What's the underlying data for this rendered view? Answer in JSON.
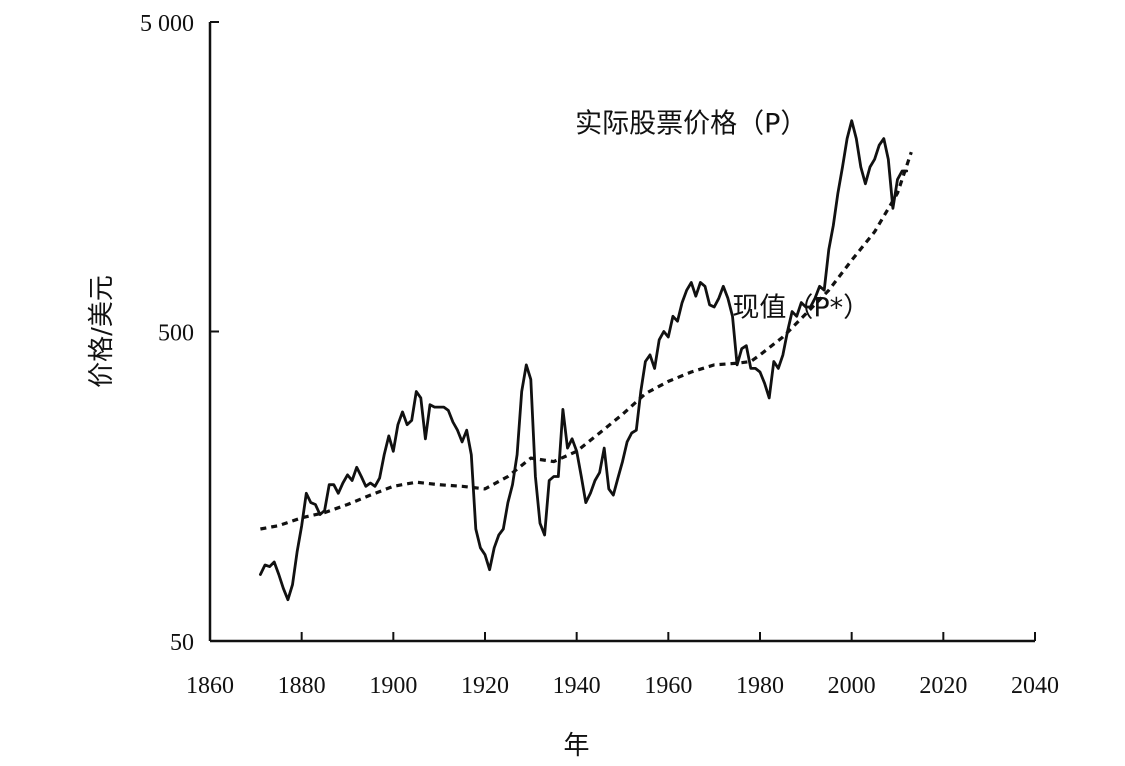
{
  "chart_data": {
    "type": "line",
    "title": "",
    "xlabel": "年",
    "ylabel": "价格/美元",
    "y_scale": "log",
    "xlim": [
      1860,
      2040
    ],
    "ylim": [
      50,
      5000
    ],
    "x_ticks": [
      1860,
      1880,
      1900,
      1920,
      1940,
      1960,
      1980,
      2000,
      2020,
      2040
    ],
    "x_tick_labels": [
      "1860",
      "1880",
      "1900",
      "1920",
      "1940",
      "1960",
      "1980",
      "2000",
      "2020",
      "2040"
    ],
    "y_ticks": [
      50,
      500,
      5000
    ],
    "y_tick_labels": [
      "50",
      "500",
      "5 000"
    ],
    "grid": false,
    "colors": {
      "line": "#111111",
      "axis": "#111111"
    },
    "series": [
      {
        "name": "实际股票价格（P）",
        "style": "solid",
        "x": [
          1871,
          1872,
          1873,
          1874,
          1875,
          1876,
          1877,
          1878,
          1879,
          1880,
          1881,
          1882,
          1883,
          1884,
          1885,
          1886,
          1887,
          1888,
          1889,
          1890,
          1891,
          1892,
          1893,
          1894,
          1895,
          1896,
          1897,
          1898,
          1899,
          1900,
          1901,
          1902,
          1903,
          1904,
          1905,
          1906,
          1907,
          1908,
          1909,
          1910,
          1911,
          1912,
          1913,
          1914,
          1915,
          1916,
          1917,
          1918,
          1919,
          1920,
          1921,
          1922,
          1923,
          1924,
          1925,
          1926,
          1927,
          1928,
          1929,
          1930,
          1931,
          1932,
          1933,
          1934,
          1935,
          1936,
          1937,
          1938,
          1939,
          1940,
          1941,
          1942,
          1943,
          1944,
          1945,
          1946,
          1947,
          1948,
          1949,
          1950,
          1951,
          1952,
          1953,
          1954,
          1955,
          1956,
          1957,
          1958,
          1959,
          1960,
          1961,
          1962,
          1963,
          1964,
          1965,
          1966,
          1967,
          1968,
          1969,
          1970,
          1971,
          1972,
          1973,
          1974,
          1975,
          1976,
          1977,
          1978,
          1979,
          1980,
          1981,
          1982,
          1983,
          1984,
          1985,
          1986,
          1987,
          1988,
          1989,
          1990,
          1991,
          1992,
          1993,
          1994,
          1995,
          1996,
          1997,
          1998,
          1999,
          2000,
          2001,
          2002,
          2003,
          2004,
          2005,
          2006,
          2007,
          2008,
          2009,
          2010,
          2011,
          2012
        ],
        "y": [
          82,
          88,
          87,
          90,
          82,
          74,
          68,
          76,
          97,
          118,
          150,
          140,
          138,
          128,
          132,
          160,
          160,
          150,
          162,
          172,
          165,
          182,
          170,
          158,
          162,
          158,
          168,
          200,
          230,
          205,
          250,
          275,
          250,
          258,
          320,
          305,
          225,
          290,
          285,
          285,
          285,
          278,
          255,
          240,
          220,
          240,
          200,
          115,
          100,
          95,
          85,
          100,
          110,
          115,
          140,
          160,
          200,
          320,
          390,
          350,
          170,
          120,
          110,
          165,
          170,
          170,
          280,
          210,
          225,
          205,
          170,
          140,
          150,
          165,
          175,
          210,
          155,
          148,
          168,
          190,
          220,
          235,
          240,
          320,
          400,
          420,
          380,
          470,
          500,
          480,
          560,
          540,
          620,
          680,
          720,
          650,
          720,
          700,
          610,
          600,
          640,
          700,
          640,
          560,
          390,
          440,
          450,
          380,
          380,
          370,
          340,
          305,
          400,
          380,
          420,
          500,
          580,
          560,
          620,
          600,
          600,
          640,
          700,
          680,
          920,
          1100,
          1400,
          1700,
          2100,
          2400,
          2100,
          1700,
          1500,
          1700,
          1800,
          2000,
          2100,
          1800,
          1250,
          1550,
          1650,
          1650
        ]
      },
      {
        "name": "现值（P*）",
        "style": "dashed",
        "x": [
          1871,
          1875,
          1880,
          1885,
          1890,
          1895,
          1900,
          1905,
          1910,
          1915,
          1920,
          1925,
          1930,
          1935,
          1940,
          1945,
          1950,
          1955,
          1960,
          1965,
          1970,
          1975,
          1978,
          1980,
          1985,
          1990,
          1995,
          2000,
          2005,
          2010,
          2013
        ],
        "y": [
          115,
          118,
          125,
          130,
          138,
          148,
          158,
          163,
          160,
          158,
          155,
          170,
          195,
          190,
          205,
          235,
          270,
          315,
          345,
          370,
          390,
          395,
          400,
          420,
          480,
          570,
          680,
          850,
          1050,
          1400,
          1900
        ]
      }
    ],
    "annotations": [
      {
        "text": "实际股票价格（P）",
        "series_index": 0,
        "x": 1965,
        "y": 2200
      },
      {
        "text": "现值（P*）",
        "series_index": 1,
        "x": 1989,
        "y": 560
      }
    ]
  }
}
